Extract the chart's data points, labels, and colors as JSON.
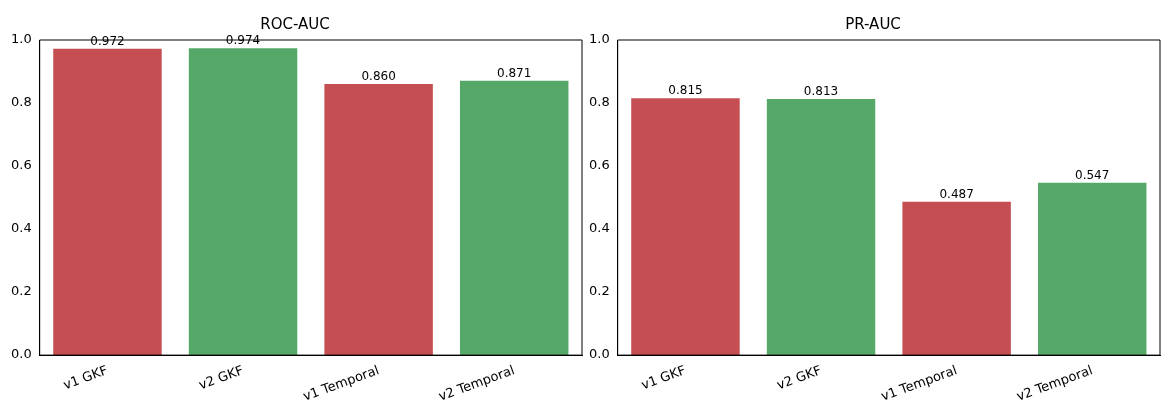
{
  "chart_data": [
    {
      "type": "bar",
      "title": "ROC-AUC",
      "categories": [
        "v1 GKF",
        "v2 GKF",
        "v1 Temporal",
        "v2 Temporal"
      ],
      "values": [
        0.972,
        0.974,
        0.86,
        0.871
      ],
      "value_labels": [
        "0.972",
        "0.974",
        "0.860",
        "0.871"
      ],
      "colors": [
        "#c44e52",
        "#55a868",
        "#c44e52",
        "#55a868"
      ],
      "ylim": [
        0,
        1
      ],
      "yticks": [
        {
          "value": 0,
          "label": "0.0"
        },
        {
          "value": 0.2,
          "label": "0.2"
        },
        {
          "value": 0.4,
          "label": "0.4"
        },
        {
          "value": 0.6,
          "label": "0.6"
        },
        {
          "value": 0.8,
          "label": "0.8"
        },
        {
          "value": 1,
          "label": "1.0"
        }
      ],
      "grid": false,
      "legend": false
    },
    {
      "type": "bar",
      "title": "PR-AUC",
      "categories": [
        "v1 GKF",
        "v2 GKF",
        "v1 Temporal",
        "v2 Temporal"
      ],
      "values": [
        0.815,
        0.813,
        0.487,
        0.547
      ],
      "value_labels": [
        "0.815",
        "0.813",
        "0.487",
        "0.547"
      ],
      "colors": [
        "#c44e52",
        "#55a868",
        "#c44e52",
        "#55a868"
      ],
      "ylim": [
        0,
        1
      ],
      "yticks": [
        {
          "value": 0,
          "label": "0.0"
        },
        {
          "value": 0.2,
          "label": "0.2"
        },
        {
          "value": 0.4,
          "label": "0.4"
        },
        {
          "value": 0.6,
          "label": "0.6"
        },
        {
          "value": 0.8,
          "label": "0.8"
        },
        {
          "value": 1,
          "label": "1.0"
        }
      ],
      "grid": false,
      "legend": false
    }
  ]
}
